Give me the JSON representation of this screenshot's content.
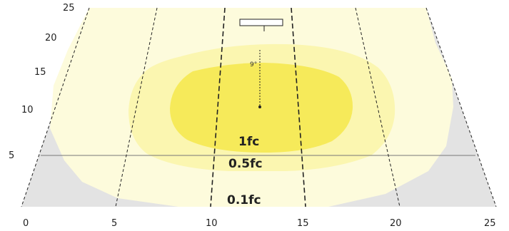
{
  "diagram": {
    "x_ticks": [
      "0",
      "5",
      "10",
      "15",
      "20",
      "25"
    ],
    "y_ticks": [
      "25",
      "20",
      "15",
      "10",
      "5"
    ],
    "contours": [
      {
        "level": "0.1fc",
        "label": "0.1fc",
        "fill": "#fdfbdc"
      },
      {
        "level": "0.5fc",
        "label": "0.5fc",
        "fill": "#fbf6b0"
      },
      {
        "level": "1fc",
        "label": "1fc",
        "fill": "#f6ea5a"
      }
    ],
    "aim_angle": "9°",
    "colors": {
      "background_gray": "#e3e3e3",
      "grid_line": "#777777",
      "dashed_line": "#222222"
    }
  }
}
